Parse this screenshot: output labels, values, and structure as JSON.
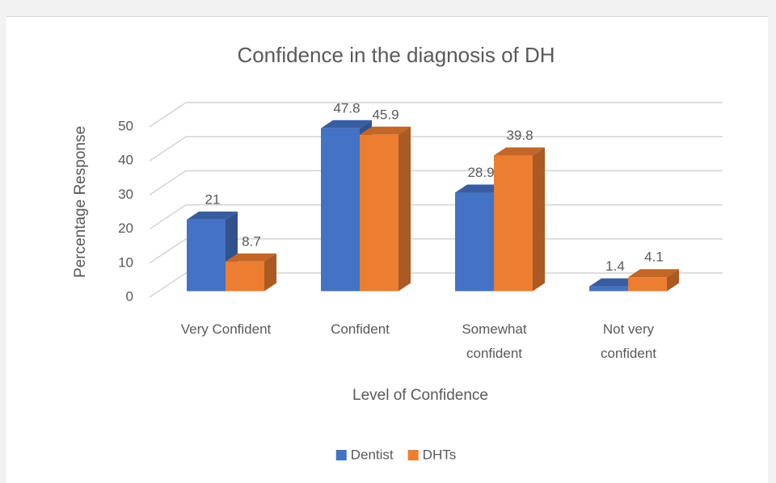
{
  "chart_data": {
    "type": "bar3d",
    "title": "Confidence in the diagnosis of DH",
    "x_label": "Level of Confidence",
    "y_label": "Percentage Response",
    "categories": [
      "Very Confident",
      "Confident",
      "Somewhat confident",
      "Not very confident"
    ],
    "series": [
      {
        "name": "Dentist",
        "color": "#4472c4",
        "values": [
          21,
          47.8,
          28.9,
          1.4
        ]
      },
      {
        "name": "DHTs",
        "color": "#ed7d31",
        "values": [
          8.7,
          45.9,
          39.8,
          4.1
        ]
      }
    ],
    "ylim": [
      0,
      50
    ],
    "yticks": [
      0,
      10,
      20,
      30,
      40,
      50
    ],
    "grid": true,
    "legend": "bottom"
  }
}
